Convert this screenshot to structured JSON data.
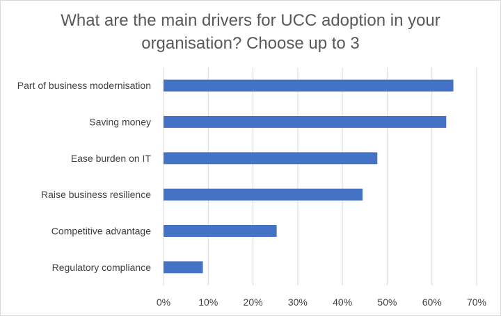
{
  "chart_data": {
    "type": "bar",
    "orientation": "horizontal",
    "title": "What are the main drivers for UCC adoption in your organisation? Choose up to 3",
    "categories": [
      "Part of business modernisation",
      "Saving money",
      "Ease burden on IT",
      "Raise business resilience",
      "Competitive advantage",
      "Regulatory compliance"
    ],
    "values": [
      0.648,
      0.632,
      0.478,
      0.445,
      0.253,
      0.088
    ],
    "xlim": [
      0,
      0.7
    ],
    "xticks": [
      "0%",
      "10%",
      "20%",
      "30%",
      "40%",
      "50%",
      "60%",
      "70%"
    ],
    "xlabel": "",
    "ylabel": "",
    "grid": "vertical",
    "legend": "none",
    "bar_color": "#4472c4"
  }
}
